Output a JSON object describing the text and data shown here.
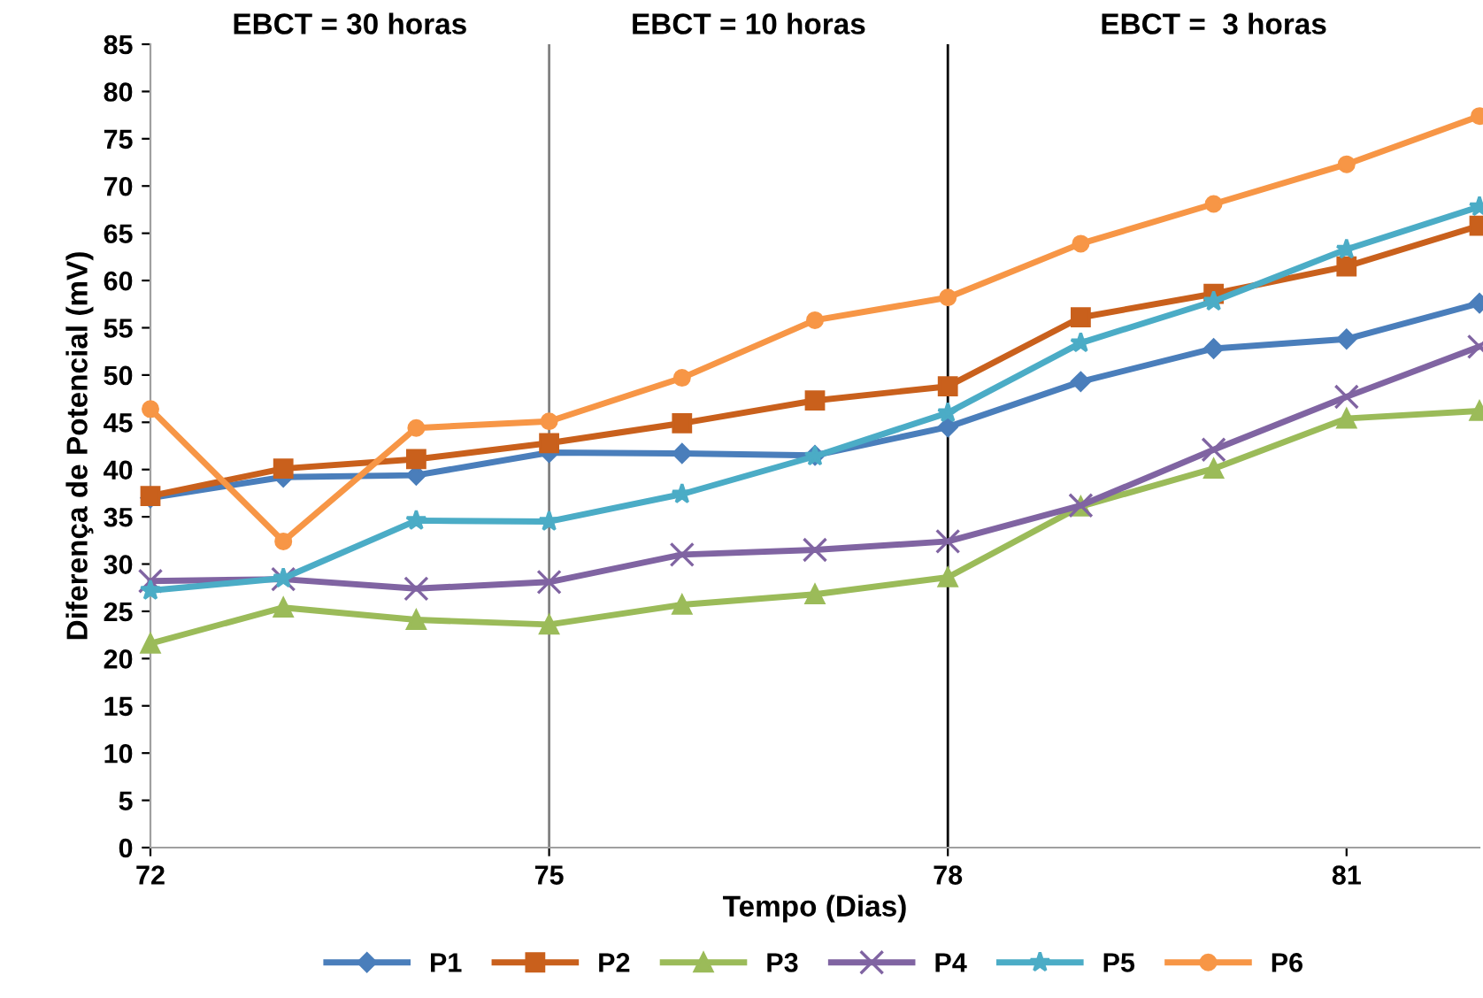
{
  "chart_data": {
    "type": "line",
    "xlabel": "Tempo (Dias)",
    "ylabel": "Diferença de Potencial (mV)",
    "x": [
      72,
      73,
      74,
      75,
      76,
      77,
      78,
      79,
      80,
      81,
      82
    ],
    "series": [
      {
        "name": "P1",
        "color": "#4a7ebb",
        "marker": "diamond",
        "values": [
          37,
          39.2,
          39.4,
          41.8,
          41.7,
          41.5,
          44.5,
          49.3,
          52.8,
          53.8,
          57.6
        ]
      },
      {
        "name": "P2",
        "color": "#c9601c",
        "marker": "square",
        "values": [
          37.2,
          40.1,
          41.1,
          42.8,
          44.9,
          47.3,
          48.8,
          56.1,
          58.6,
          61.5,
          65.8
        ]
      },
      {
        "name": "P3",
        "color": "#9bbb59",
        "marker": "triangle",
        "values": [
          21.6,
          25.4,
          24.1,
          23.6,
          25.7,
          26.8,
          28.6,
          36.1,
          40.1,
          45.4,
          46.2
        ]
      },
      {
        "name": "P4",
        "color": "#8064a2",
        "marker": "cross",
        "values": [
          28.2,
          28.4,
          27.4,
          28.1,
          31.0,
          31.5,
          32.4,
          36.2,
          42.1,
          47.7,
          53
        ]
      },
      {
        "name": "P5",
        "color": "#4bacc6",
        "marker": "star",
        "values": [
          27.2,
          28.5,
          34.6,
          34.5,
          37.4,
          41.4,
          46,
          53.4,
          57.8,
          63.3,
          67.8
        ]
      },
      {
        "name": "P6",
        "color": "#f79646",
        "marker": "circle",
        "values": [
          46.4,
          32.4,
          44.4,
          45.1,
          49.7,
          55.8,
          58.2,
          63.9,
          68.1,
          72.3,
          77.4
        ]
      }
    ],
    "xlim": [
      72,
      82
    ],
    "xticks": [
      72,
      75,
      78,
      81
    ],
    "ylim": [
      0,
      85
    ],
    "yticks": [
      0,
      5,
      10,
      15,
      20,
      25,
      30,
      35,
      40,
      45,
      50,
      55,
      60,
      65,
      70,
      75,
      80,
      85
    ],
    "ref_lines": [
      {
        "axis": "x",
        "value": 75,
        "color": "#808080"
      },
      {
        "axis": "x",
        "value": 78,
        "color": "#000000"
      }
    ],
    "annotations": [
      "EBCT = 30 horas",
      "EBCT = 10 horas",
      "EBCT =  3 horas"
    ],
    "grid": false,
    "legend": "bottom"
  }
}
